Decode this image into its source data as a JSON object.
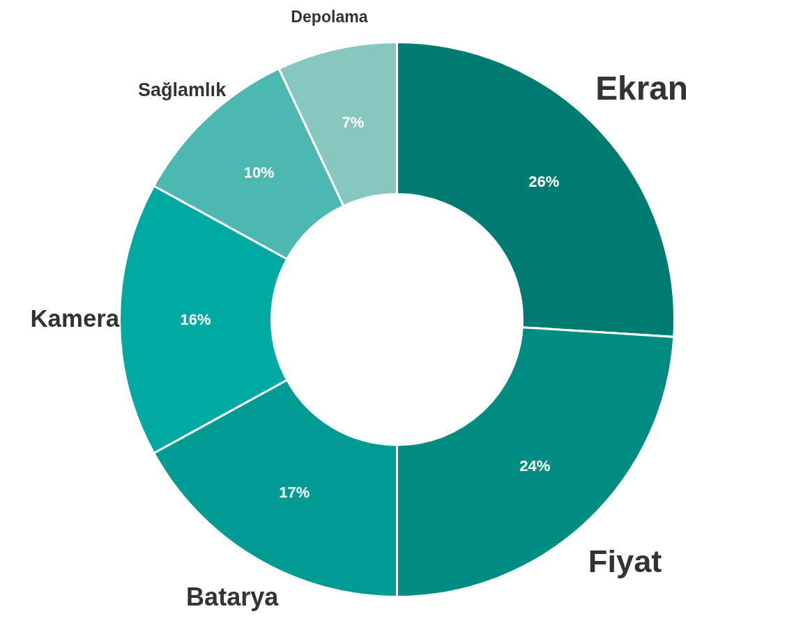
{
  "chart_data": {
    "type": "donut",
    "categories": [
      "Ekran",
      "Fiyat",
      "Batarya",
      "Kamera",
      "Sağlamlık",
      "Depolama"
    ],
    "values": [
      26,
      24,
      17,
      16,
      10,
      7
    ],
    "value_labels": [
      "26%",
      "24%",
      "17%",
      "16%",
      "10%",
      "7%"
    ],
    "colors": [
      "#007b72",
      "#008c82",
      "#009b93",
      "#00aaa2",
      "#4db8b1",
      "#86c7c0"
    ]
  }
}
